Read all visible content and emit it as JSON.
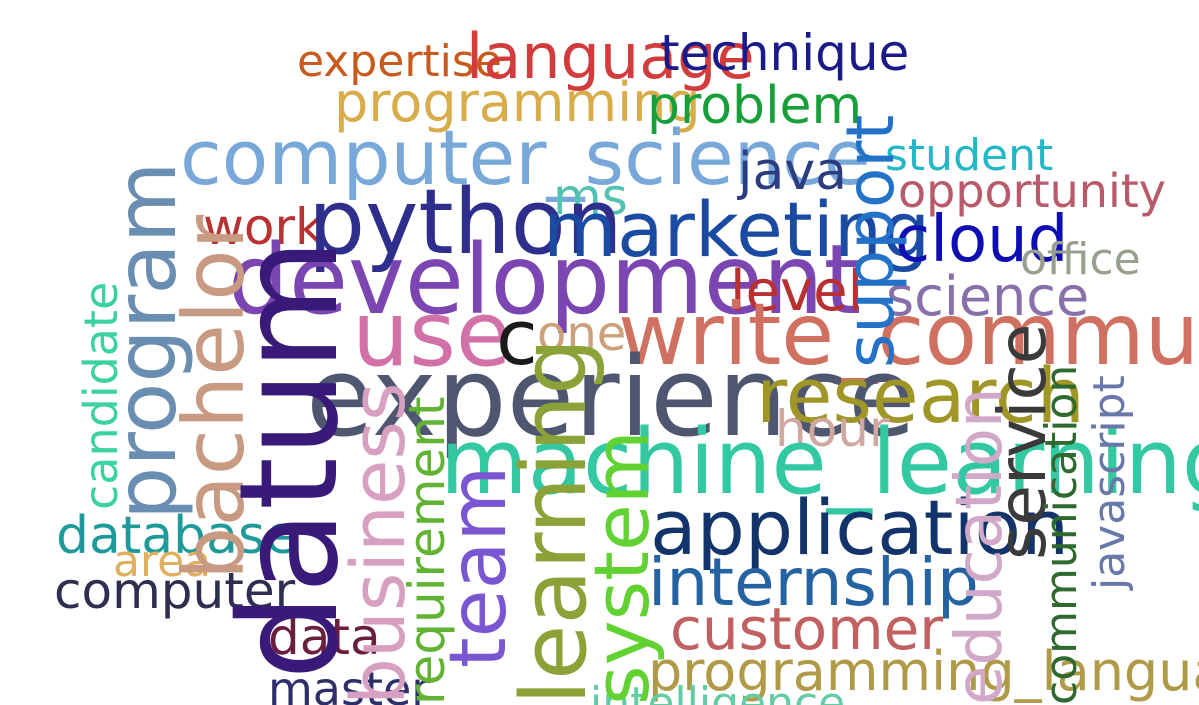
{
  "words": [
    {
      "text": "expertise",
      "color": "#c85a1e"
    },
    {
      "text": "language",
      "color": "#d23c3c"
    },
    {
      "text": "technique",
      "color": "#1a1a8a"
    },
    {
      "text": "programming",
      "color": "#d9ac4a"
    },
    {
      "text": "problem",
      "color": "#17a03a"
    },
    {
      "text": "computer_science",
      "color": "#78a8da"
    },
    {
      "text": "student",
      "color": "#23b8c8"
    },
    {
      "text": "java",
      "color": "#2b3d80"
    },
    {
      "text": "opportunity",
      "color": "#b85a6a"
    },
    {
      "text": "ms",
      "color": "#52c2b2"
    },
    {
      "text": "work",
      "color": "#b83232"
    },
    {
      "text": "python",
      "color": "#2e2e8c"
    },
    {
      "text": "marketing",
      "color": "#1b4aa3"
    },
    {
      "text": "cloud",
      "color": "#0e0eb2"
    },
    {
      "text": "office",
      "color": "#96a08c"
    },
    {
      "text": "development",
      "color": "#7b46b2"
    },
    {
      "text": "level",
      "color": "#b83030"
    },
    {
      "text": "science",
      "color": "#8870aa"
    },
    {
      "text": "use",
      "color": "#d271a8"
    },
    {
      "text": "c",
      "color": "#1a1a1a"
    },
    {
      "text": "one",
      "color": "#cca07a"
    },
    {
      "text": "write_communication",
      "color": "#d07060"
    },
    {
      "text": "experience",
      "color": "#4e5670"
    },
    {
      "text": "research",
      "color": "#a09628"
    },
    {
      "text": "hour",
      "color": "#d0a8a0"
    },
    {
      "text": "machine_learning",
      "color": "#32c9a2"
    },
    {
      "text": "application",
      "color": "#12346a"
    },
    {
      "text": "internship",
      "color": "#2462a2"
    },
    {
      "text": "customer",
      "color": "#c06060"
    },
    {
      "text": "programming_language",
      "color": "#b09a48"
    },
    {
      "text": "intelligence",
      "color": "#62cca2"
    },
    {
      "text": "database",
      "color": "#1e9a9a"
    },
    {
      "text": "area",
      "color": "#e0b060"
    },
    {
      "text": "computer",
      "color": "#2e2e50"
    },
    {
      "text": "data",
      "color": "#6a1e3e"
    },
    {
      "text": "master",
      "color": "#2e2e6a"
    },
    {
      "text": "candidate",
      "color": "#3cd2a0"
    },
    {
      "text": "program",
      "color": "#6a8eb2"
    },
    {
      "text": "bachelor",
      "color": "#c89a82"
    },
    {
      "text": "datum",
      "color": "#3a1a78"
    },
    {
      "text": "business",
      "color": "#d8a0c0"
    },
    {
      "text": "requirement",
      "color": "#62b234"
    },
    {
      "text": "team",
      "color": "#7a56d2"
    },
    {
      "text": "learning",
      "color": "#8aa238"
    },
    {
      "text": "system",
      "color": "#62d232"
    },
    {
      "text": "support",
      "color": "#2472c8"
    },
    {
      "text": "education",
      "color": "#d2a8c8"
    },
    {
      "text": "service",
      "color": "#3a3a3a"
    },
    {
      "text": "communication",
      "color": "#2e6a2e"
    },
    {
      "text": "javascript",
      "color": "#6878a8"
    }
  ]
}
